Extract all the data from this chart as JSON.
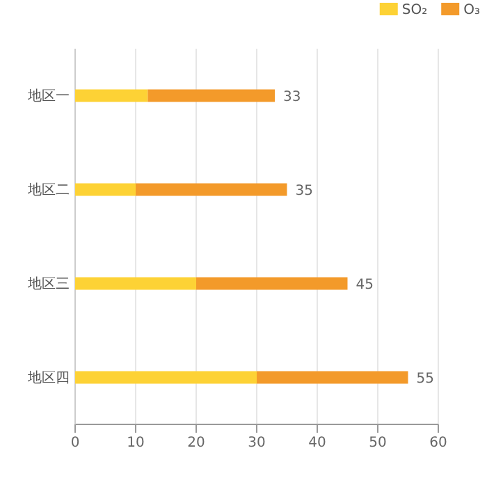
{
  "chart_data": {
    "type": "bar",
    "orientation": "horizontal",
    "stacked": true,
    "categories": [
      "地区一",
      "地区二",
      "地区三",
      "地区四"
    ],
    "series": [
      {
        "name": "SO₂",
        "color": "#fdd235",
        "values": [
          12,
          10,
          20,
          30
        ]
      },
      {
        "name": "O₃",
        "color": "#f39a2a",
        "values": [
          21,
          25,
          25,
          25
        ]
      }
    ],
    "totals": [
      "33",
      "35",
      "45",
      "55"
    ],
    "xlim": [
      0,
      60
    ],
    "xticks": [
      0,
      10,
      20,
      30,
      40,
      50,
      60
    ],
    "grid": "x",
    "legend": "top right"
  }
}
